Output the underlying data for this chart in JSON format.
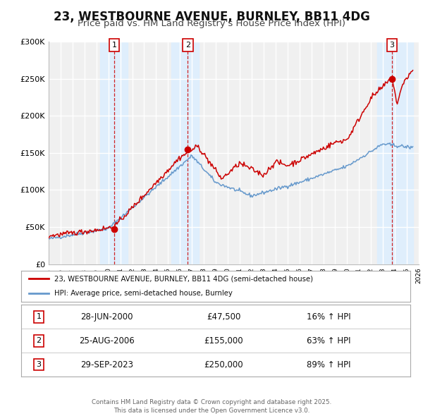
{
  "title": "23, WESTBOURNE AVENUE, BURNLEY, BB11 4DG",
  "subtitle": "Price paid vs. HM Land Registry's House Price Index (HPI)",
  "title_fontsize": 12,
  "subtitle_fontsize": 9.5,
  "xlim": [
    1995,
    2026
  ],
  "ylim": [
    0,
    300000
  ],
  "yticks": [
    0,
    50000,
    100000,
    150000,
    200000,
    250000,
    300000
  ],
  "ytick_labels": [
    "£0",
    "£50K",
    "£100K",
    "£150K",
    "£200K",
    "£250K",
    "£300K"
  ],
  "xticks": [
    1995,
    1996,
    1997,
    1998,
    1999,
    2000,
    2001,
    2002,
    2003,
    2004,
    2005,
    2006,
    2007,
    2008,
    2009,
    2010,
    2011,
    2012,
    2013,
    2014,
    2015,
    2016,
    2017,
    2018,
    2019,
    2020,
    2021,
    2022,
    2023,
    2024,
    2025,
    2026
  ],
  "property_color": "#cc0000",
  "hpi_color": "#6699cc",
  "sale_marker_color": "#cc0000",
  "vline_color_dashed": "#cc0000",
  "shade_color": "#ddeeff",
  "sale1_x": 2000.49,
  "sale1_y": 47500,
  "sale1_label": "1",
  "sale2_x": 2006.65,
  "sale2_y": 155000,
  "sale2_label": "2",
  "sale3_x": 2023.75,
  "sale3_y": 250000,
  "sale3_label": "3",
  "legend_property": "23, WESTBOURNE AVENUE, BURNLEY, BB11 4DG (semi-detached house)",
  "legend_hpi": "HPI: Average price, semi-detached house, Burnley",
  "table_rows": [
    {
      "num": "1",
      "date": "28-JUN-2000",
      "price": "£47,500",
      "hpi": "16% ↑ HPI"
    },
    {
      "num": "2",
      "date": "25-AUG-2006",
      "price": "£155,000",
      "hpi": "63% ↑ HPI"
    },
    {
      "num": "3",
      "date": "29-SEP-2023",
      "price": "£250,000",
      "hpi": "89% ↑ HPI"
    }
  ],
  "footer": "Contains HM Land Registry data © Crown copyright and database right 2025.\nThis data is licensed under the Open Government Licence v3.0.",
  "bg_color": "#ffffff",
  "plot_bg_color": "#f0f0f0"
}
